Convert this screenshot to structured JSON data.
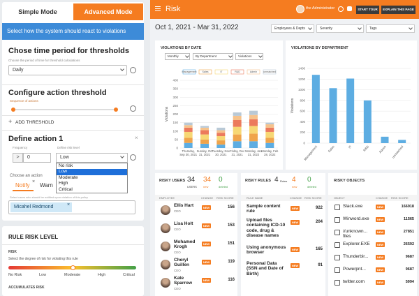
{
  "sidebar": {
    "tabs": [
      "Simple Mode",
      "Advanced Mode"
    ],
    "banner": "Select how the system should react to violations",
    "time_period": {
      "title": "Chose time period for thresholds",
      "hint": "Choose the period of time for threshold calculations",
      "value": "Daily"
    },
    "threshold": {
      "title": "Configure action threshold",
      "hint": "Sequence of actions",
      "add": "ADD THRESHOLD"
    },
    "action": {
      "title": "Define action 1",
      "frequency_label": "Frequency",
      "risk_label": "Define risk level",
      "operator": ">",
      "frequency": "0",
      "risk": "Low",
      "options": [
        "No risk",
        "Low",
        "Moderate",
        "High",
        "Critical"
      ],
      "choose": "Choose an action",
      "tabs": [
        "Notify",
        "Warn"
      ],
      "users_hint": "Select users who should be notified upon violation of this policy",
      "user": "Micahel Redmond"
    },
    "rule_risk": {
      "title": "RULE RISK LEVEL",
      "risk": "RISK",
      "hint": "Select the degree of risk for violating this rule",
      "levels": [
        "No Risk",
        "Low",
        "Moderate",
        "High",
        "Critical"
      ],
      "accumulates": "ACCUMULATES RISK"
    }
  },
  "header": {
    "title": "Risk",
    "user": "the Administrator",
    "buttons": [
      "START TOUR",
      "EXPLAIN THIS PAGE"
    ]
  },
  "filters": {
    "date": "Oct 1, 2021 - Mar 31, 2022",
    "dropdowns": [
      "Employees & Depts",
      "Severity",
      "Tags"
    ]
  },
  "violations_by_date": {
    "title": "VIOLATIONS BY DATE",
    "controls": [
      "Monthly",
      "By Department",
      "Violations"
    ],
    "ylabel": "Violations",
    "categories": [
      "Thursday, Sep 30, 2021",
      "Sunday, Oct 31, 2021",
      "Tuesday, Nov 30, 2021",
      "Friday, Dec 31, 2021",
      "Monday, Jan 31, 2022",
      "Monday, Feb 28, 2022"
    ],
    "series": [
      {
        "name": "Management",
        "color": "#5dade2",
        "values": [
          30,
          25,
          20,
          40,
          40,
          30
        ]
      },
      {
        "name": "Sales",
        "color": "#f0a44b",
        "values": [
          30,
          25,
          25,
          40,
          45,
          30
        ]
      },
      {
        "name": "IT",
        "color": "#f7d774",
        "values": [
          35,
          30,
          25,
          45,
          45,
          35
        ]
      },
      {
        "name": "R&D",
        "color": "#ec7a5c",
        "values": [
          25,
          25,
          20,
          40,
          40,
          25
        ]
      },
      {
        "name": "Admin",
        "color": "#f6c28b",
        "values": [
          15,
          15,
          15,
          25,
          25,
          20
        ]
      },
      {
        "name": "unmatched",
        "color": "#b9c9d6",
        "values": [
          15,
          10,
          15,
          20,
          25,
          10
        ]
      }
    ],
    "ylim": [
      0,
      400
    ],
    "yticks": [
      0,
      50,
      100,
      150,
      200,
      250,
      300,
      350,
      400
    ]
  },
  "violations_by_department": {
    "title": "VIOLATIONS BY DEPARTMENT",
    "ylabel": "Violations",
    "color": "#5dade2",
    "categories": [
      "Management",
      "Sales",
      "IT",
      "R&D",
      "Admin",
      "unmatched"
    ],
    "values": [
      1280,
      1030,
      1210,
      800,
      120,
      60
    ],
    "ylim": [
      0,
      1400
    ],
    "yticks": [
      0,
      200,
      400,
      600,
      800,
      1000,
      1200,
      1400
    ]
  },
  "risky_users": {
    "title": "RISKY USERS",
    "counts": [
      {
        "value": 34,
        "label": "USERS"
      },
      {
        "value": 34,
        "label": "new"
      },
      {
        "value": 0,
        "label": "deleted"
      }
    ],
    "columns": [
      "EMPLOYEE",
      "CHANGE",
      "RISK SCORE"
    ],
    "rows": [
      {
        "name": "Ellis Hart",
        "role": "CEO",
        "change": "NEW",
        "score": 156
      },
      {
        "name": "Lisa Holt",
        "role": "CEO",
        "change": "NEW",
        "score": 153
      },
      {
        "name": "Mohamed Krogh",
        "role": "CEO",
        "change": "NEW",
        "score": 151
      },
      {
        "name": "Cheryl Guillen",
        "role": "CEO",
        "change": "NEW",
        "score": 119
      },
      {
        "name": "Kate Sparrow",
        "role": "CEO",
        "change": "NEW",
        "score": 116
      }
    ]
  },
  "risky_rules": {
    "title": "RISKY RULES",
    "counts": [
      {
        "value": 4,
        "label": "Rules"
      },
      {
        "value": 4,
        "label": "new"
      },
      {
        "value": 0,
        "label": "deleted"
      }
    ],
    "columns": [
      "RULE NAME",
      "CHANGE",
      "RISK SCORE"
    ],
    "rows": [
      {
        "name": "Sample content rule",
        "change": "NEW",
        "score": 922
      },
      {
        "name": "Upload files containing ICD-10 code, drug & disease names",
        "change": "NEW",
        "score": 204
      },
      {
        "name": "Using anonymous browser",
        "change": "NEW",
        "score": 165
      },
      {
        "name": "Personal Data (SSN and Date of Birth)",
        "change": "NEW",
        "score": 91
      }
    ]
  },
  "risky_objects": {
    "title": "RISKY OBJECTS",
    "columns": [
      "OBJECT",
      "CHANGE",
      "RISK SCORE"
    ],
    "rows": [
      {
        "name": "Slack.exe",
        "change": "NEW",
        "score": 166918
      },
      {
        "name": "Winword.exe",
        "change": "NEW",
        "score": 11565
      },
      {
        "name": "//unknown... files",
        "change": "NEW",
        "score": 27851
      },
      {
        "name": "Explorer.EXE",
        "change": "NEW",
        "score": 26592
      },
      {
        "name": "Thunderbir...",
        "change": "NEW",
        "score": 9687
      },
      {
        "name": "Powerpnt...",
        "change": "NEW",
        "score": 9687
      },
      {
        "name": "twitter.com",
        "change": "NEW",
        "score": 5994
      }
    ]
  }
}
